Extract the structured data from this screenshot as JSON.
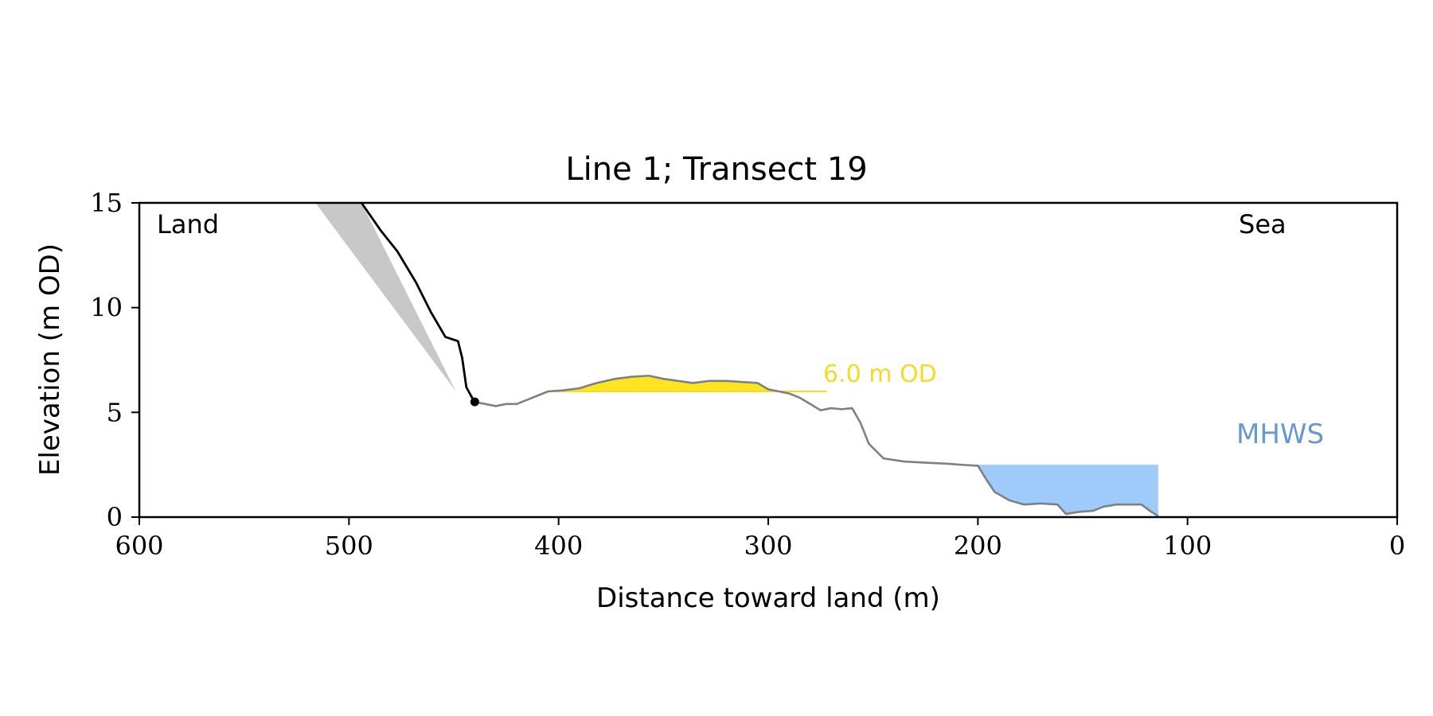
{
  "chart_data": {
    "type": "line",
    "title": "Line 1; Transect 19",
    "xlabel": "Distance toward land (m)",
    "ylabel": "Elevation (m OD)",
    "xlim": [
      600,
      0
    ],
    "ylim": [
      0,
      15
    ],
    "x_ticks": [
      600,
      500,
      400,
      300,
      200,
      100,
      0
    ],
    "y_ticks": [
      0,
      5,
      10,
      15
    ],
    "grid": false,
    "annotations": {
      "land_label": "Land",
      "sea_label": "Sea",
      "threshold_label": "6.0 m OD",
      "mhws_label": "MHWS"
    },
    "thresholds": {
      "dune_level": 6.0,
      "mhws_level": 2.5
    },
    "colors": {
      "cliff_line": "#000000",
      "profile_line": "#808080",
      "cliff_wedge": "#c8c8c8",
      "dune_fill": "#ffe51f",
      "threshold_text": "#f2dc24",
      "mhws_fill": "#9ecbfa",
      "mhws_text": "#6699cc"
    },
    "cliff_toe": {
      "x": 440,
      "y": 5.5
    },
    "cliff_wedge": [
      [
        516,
        15
      ],
      [
        449,
        6.0
      ],
      [
        494,
        15
      ]
    ],
    "cliff_series": [
      [
        494,
        15
      ],
      [
        485,
        13.7
      ],
      [
        477,
        12.7
      ],
      [
        468,
        11.2
      ],
      [
        461,
        9.8
      ],
      [
        454,
        8.6
      ],
      [
        448,
        8.4
      ],
      [
        446,
        7.6
      ],
      [
        444,
        6.2
      ],
      [
        441,
        5.65
      ],
      [
        440,
        5.5
      ]
    ],
    "profile_series": [
      [
        440,
        5.5
      ],
      [
        435,
        5.4
      ],
      [
        430,
        5.3
      ],
      [
        425,
        5.4
      ],
      [
        420,
        5.4
      ],
      [
        415,
        5.6
      ],
      [
        410,
        5.8
      ],
      [
        405,
        6.0
      ],
      [
        398,
        6.05
      ],
      [
        390,
        6.15
      ],
      [
        382,
        6.4
      ],
      [
        373,
        6.6
      ],
      [
        365,
        6.7
      ],
      [
        357,
        6.75
      ],
      [
        350,
        6.6
      ],
      [
        343,
        6.5
      ],
      [
        336,
        6.4
      ],
      [
        328,
        6.5
      ],
      [
        320,
        6.5
      ],
      [
        312,
        6.45
      ],
      [
        305,
        6.4
      ],
      [
        300,
        6.1
      ],
      [
        295,
        6.0
      ],
      [
        290,
        5.9
      ],
      [
        285,
        5.7
      ],
      [
        280,
        5.4
      ],
      [
        275,
        5.1
      ],
      [
        270,
        5.2
      ],
      [
        265,
        5.15
      ],
      [
        260,
        5.2
      ],
      [
        256,
        4.5
      ],
      [
        252,
        3.5
      ],
      [
        245,
        2.8
      ],
      [
        235,
        2.65
      ],
      [
        225,
        2.6
      ],
      [
        215,
        2.55
      ],
      [
        208,
        2.5
      ],
      [
        200,
        2.45
      ],
      [
        196,
        1.8
      ],
      [
        192,
        1.2
      ],
      [
        185,
        0.8
      ],
      [
        178,
        0.6
      ],
      [
        170,
        0.65
      ],
      [
        162,
        0.6
      ],
      [
        158,
        0.15
      ],
      [
        152,
        0.25
      ],
      [
        145,
        0.3
      ],
      [
        140,
        0.5
      ],
      [
        134,
        0.6
      ],
      [
        128,
        0.6
      ],
      [
        122,
        0.6
      ],
      [
        118,
        0.3
      ],
      [
        114,
        0.05
      ]
    ],
    "dune_fill_range": [
      405,
      295
    ],
    "threshold_line_range": [
      405,
      272
    ],
    "mhws_fill_range": [
      210,
      114
    ]
  }
}
